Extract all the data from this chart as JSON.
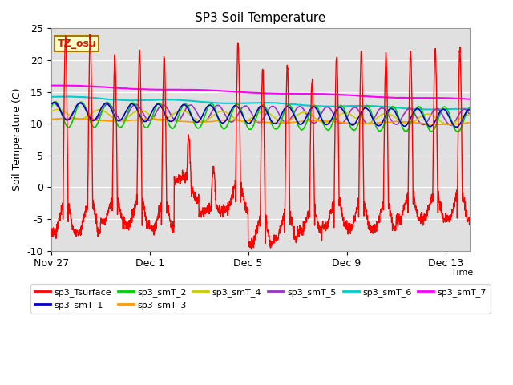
{
  "title": "SP3 Soil Temperature",
  "xlabel": "Time",
  "ylabel": "Soil Temperature (C)",
  "ylim": [
    -10,
    25
  ],
  "xlim": [
    0,
    17
  ],
  "tz_label": "TZ_osu",
  "background_color": "#ffffff",
  "plot_bg_color": "#e0e0e0",
  "x_tick_positions": [
    0,
    4,
    8,
    12,
    16
  ],
  "x_tick_labels": [
    "Nov 27",
    "Dec 1",
    "Dec 5",
    "Dec 9",
    "Dec 13"
  ],
  "y_tick_positions": [
    -10,
    -5,
    0,
    5,
    10,
    15,
    20,
    25
  ],
  "series_colors": {
    "sp3_Tsurface": "#ff0000",
    "sp3_smT_1": "#0000cc",
    "sp3_smT_2": "#00cc00",
    "sp3_smT_3": "#ff9900",
    "sp3_smT_4": "#cccc00",
    "sp3_smT_5": "#9933cc",
    "sp3_smT_6": "#00cccc",
    "sp3_smT_7": "#ff00ff"
  },
  "n_points": 2000,
  "duration_days": 17
}
